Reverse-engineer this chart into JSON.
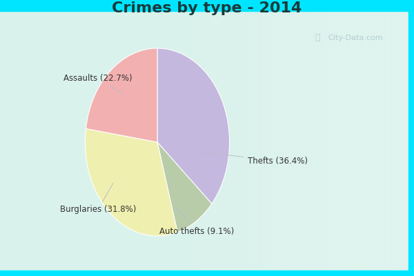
{
  "title": "Crimes by type - 2014",
  "slices": [
    {
      "label": "Thefts (36.4%)",
      "value": 36.4,
      "color": "#c4b8df"
    },
    {
      "label": "Auto thefts (9.1%)",
      "value": 9.1,
      "color": "#b8ccaa"
    },
    {
      "label": "Burglaries (31.8%)",
      "value": 31.8,
      "color": "#efefb0"
    },
    {
      "label": "Assaults (22.7%)",
      "value": 22.7,
      "color": "#f2b0b0"
    }
  ],
  "background_top": "#00e5ff",
  "background_gradient_top": "#c8ede5",
  "background_gradient_bottom": "#daf5ee",
  "title_fontsize": 16,
  "title_color": "#2a2a2a",
  "label_fontsize": 8.5,
  "label_color": "#333333",
  "watermark": "City-Data.com",
  "cyan_border": 8
}
